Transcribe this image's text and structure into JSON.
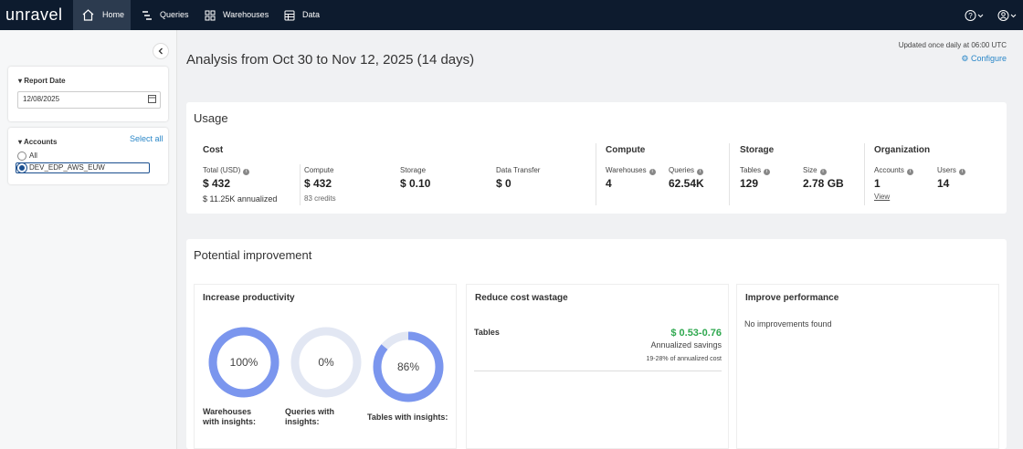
{
  "nav": {
    "logo": "unravel",
    "tabs": [
      "Home",
      "Queries",
      "Warehouses",
      "Data"
    ]
  },
  "sidebar": {
    "report_date": {
      "title": "Report Date",
      "value": "12/08/2025"
    },
    "accounts": {
      "title": "Accounts",
      "select_all": "Select all",
      "options": [
        "All",
        "DEV_EDP_AWS_EUW"
      ]
    }
  },
  "header": {
    "title": "Analysis from Oct 30 to Nov 12, 2025 (14 days)",
    "update_note": "Updated once daily at 06:00 UTC",
    "configure": "Configure"
  },
  "usage": {
    "title": "Usage",
    "sections": [
      {
        "title": "Cost",
        "metrics": [
          {
            "label": "Total (USD)",
            "value": "$ 432",
            "note": "$ 11.25K annualized",
            "info": true
          },
          {
            "label": "Compute",
            "value": "$ 432",
            "note": "83 credits"
          },
          {
            "label": "Storage",
            "value": "$ 0.10"
          },
          {
            "label": "Data Transfer",
            "value": "$ 0"
          }
        ]
      },
      {
        "title": "Compute",
        "metrics": [
          {
            "label": "Warehouses",
            "value": "4",
            "info": true
          },
          {
            "label": "Queries",
            "value": "62.54K",
            "info": true
          }
        ]
      },
      {
        "title": "Storage",
        "metrics": [
          {
            "label": "Tables",
            "value": "129",
            "info": true
          },
          {
            "label": "Size",
            "value": "2.78 GB",
            "info": true
          }
        ]
      },
      {
        "title": "Organization",
        "metrics": [
          {
            "label": "Accounts",
            "value": "1",
            "link": "View",
            "info": true
          },
          {
            "label": "Users",
            "value": "14",
            "info": true
          }
        ]
      }
    ]
  },
  "improvement": {
    "title": "Potential improvement",
    "cards": [
      {
        "title": "Increase productivity",
        "donuts": [
          {
            "value": 100,
            "label": "100%",
            "caption": "Warehouses with insights:"
          },
          {
            "value": 0,
            "label": "0%",
            "caption": "Queries with insights:"
          },
          {
            "value": 86,
            "label": "86%",
            "caption": "Tables with insights:"
          }
        ]
      },
      {
        "title": "Reduce cost wastage",
        "rows": [
          {
            "name": "Tables",
            "savings": "$ 0.53-0.76",
            "savings_label": "Annualized savings",
            "note": "19-28% of annualized cost"
          }
        ]
      },
      {
        "title": "Improve performance",
        "message": "No improvements found"
      }
    ]
  }
}
